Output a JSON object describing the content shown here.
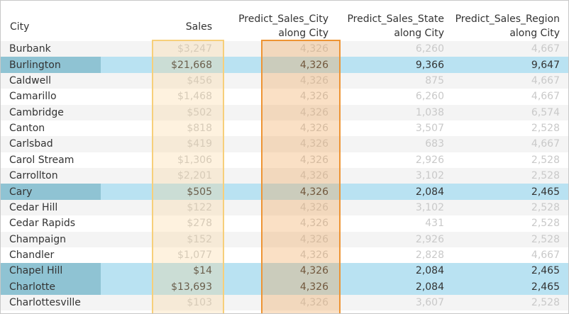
{
  "headers": {
    "city": "City",
    "sales": "Sales",
    "predict_city_line1": "Predict_Sales_City",
    "predict_city_line2": "along City",
    "predict_state_line1": "Predict_Sales_State",
    "predict_state_line2": "along City",
    "predict_region_line1": "Predict_Sales_Region",
    "predict_region_line2": "along City"
  },
  "rows": [
    {
      "city": "Burbank",
      "sales": "$3,247",
      "pred_city": "4,326",
      "pred_state": "6,260",
      "pred_region": "4,667",
      "selected": false
    },
    {
      "city": "Burlington",
      "sales": "$21,668",
      "pred_city": "4,326",
      "pred_state": "9,366",
      "pred_region": "9,647",
      "selected": true
    },
    {
      "city": "Caldwell",
      "sales": "$456",
      "pred_city": "4,326",
      "pred_state": "875",
      "pred_region": "4,667",
      "selected": false
    },
    {
      "city": "Camarillo",
      "sales": "$1,468",
      "pred_city": "4,326",
      "pred_state": "6,260",
      "pred_region": "4,667",
      "selected": false
    },
    {
      "city": "Cambridge",
      "sales": "$502",
      "pred_city": "4,326",
      "pred_state": "1,038",
      "pred_region": "6,574",
      "selected": false
    },
    {
      "city": "Canton",
      "sales": "$818",
      "pred_city": "4,326",
      "pred_state": "3,507",
      "pred_region": "2,528",
      "selected": false
    },
    {
      "city": "Carlsbad",
      "sales": "$419",
      "pred_city": "4,326",
      "pred_state": "683",
      "pred_region": "4,667",
      "selected": false
    },
    {
      "city": "Carol Stream",
      "sales": "$1,306",
      "pred_city": "4,326",
      "pred_state": "2,926",
      "pred_region": "2,528",
      "selected": false
    },
    {
      "city": "Carrollton",
      "sales": "$2,201",
      "pred_city": "4,326",
      "pred_state": "3,102",
      "pred_region": "2,528",
      "selected": false
    },
    {
      "city": "Cary",
      "sales": "$505",
      "pred_city": "4,326",
      "pred_state": "2,084",
      "pred_region": "2,465",
      "selected": true
    },
    {
      "city": "Cedar Hill",
      "sales": "$122",
      "pred_city": "4,326",
      "pred_state": "3,102",
      "pred_region": "2,528",
      "selected": false
    },
    {
      "city": "Cedar Rapids",
      "sales": "$278",
      "pred_city": "4,326",
      "pred_state": "431",
      "pred_region": "2,528",
      "selected": false
    },
    {
      "city": "Champaign",
      "sales": "$152",
      "pred_city": "4,326",
      "pred_state": "2,926",
      "pred_region": "2,528",
      "selected": false
    },
    {
      "city": "Chandler",
      "sales": "$1,077",
      "pred_city": "4,326",
      "pred_state": "2,828",
      "pred_region": "4,667",
      "selected": false
    },
    {
      "city": "Chapel Hill",
      "sales": "$14",
      "pred_city": "4,326",
      "pred_state": "2,084",
      "pred_region": "2,465",
      "selected": true
    },
    {
      "city": "Charlotte",
      "sales": "$13,693",
      "pred_city": "4,326",
      "pred_state": "2,084",
      "pred_region": "2,465",
      "selected": true
    },
    {
      "city": "Charlottesville",
      "sales": "$103",
      "pred_city": "4,326",
      "pred_state": "3,607",
      "pred_region": "2,528",
      "selected": false
    }
  ],
  "colors": {
    "selected_row": "#b9e2f2",
    "selected_city_cell": "#8fc3d3",
    "sales_highlight_border": "#f7cf7a",
    "city_prediction_highlight_border": "#ee9433"
  }
}
